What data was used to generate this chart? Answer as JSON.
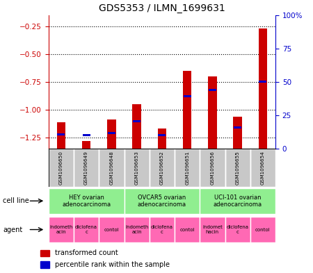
{
  "title": "GDS5353 / ILMN_1699631",
  "samples": [
    "GSM1096650",
    "GSM1096649",
    "GSM1096648",
    "GSM1096653",
    "GSM1096652",
    "GSM1096651",
    "GSM1096656",
    "GSM1096655",
    "GSM1096654"
  ],
  "red_values": [
    -1.11,
    -1.28,
    -1.09,
    -0.95,
    -1.17,
    -0.65,
    -0.7,
    -1.06,
    -0.27
  ],
  "blue_values": [
    -1.22,
    -1.23,
    -1.21,
    -1.1,
    -1.23,
    -0.88,
    -0.82,
    -1.16,
    -0.75
  ],
  "ylim_left": [
    -1.35,
    -0.15
  ],
  "ylim_right": [
    0,
    100
  ],
  "yticks_left": [
    -1.25,
    -1.0,
    -0.75,
    -0.5,
    -0.25
  ],
  "yticks_right": [
    0,
    25,
    50,
    75,
    100
  ],
  "bar_width": 0.35,
  "red_color": "#CC0000",
  "blue_color": "#0000CC",
  "left_axis_color": "#CC0000",
  "right_axis_color": "#0000CC",
  "grid_color": "#000000",
  "sample_bg_color": "#C8C8C8",
  "cell_line_color": "#90EE90",
  "agent_color": "#FF69B4",
  "cell_line_labels": [
    "HEY ovarian\nadenocarcinoma",
    "OVCAR5 ovarian\nadenocarcinoma",
    "UCI-101 ovarian\nadenocarcinoma"
  ],
  "cell_line_spans": [
    [
      0,
      3
    ],
    [
      3,
      6
    ],
    [
      6,
      9
    ]
  ],
  "agent_labels": [
    "indometh\nacin",
    "diclofena\nc",
    "contol",
    "indometh\nacin",
    "diclofena\nc",
    "contol",
    "indomet\nhacin",
    "diclofena\nc",
    "contol"
  ],
  "legend_red": "transformed count",
  "legend_blue": "percentile rank within the sample",
  "label_cellline": "cell line",
  "label_agent": "agent"
}
